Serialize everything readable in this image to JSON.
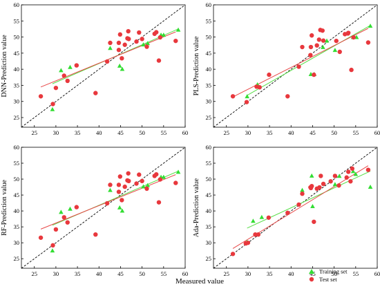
{
  "xlabel_common": "Measured value",
  "legend": {
    "training_label": "Training set",
    "test_label": "Test set",
    "placement": "bottom-right of Ada panel"
  },
  "colors": {
    "training": "#33dd33",
    "test": "#e8383d",
    "fit_training": "#55dd44",
    "fit_test": "#e84848",
    "diagonal": "#000000"
  },
  "chart_data": [
    {
      "type": "scatter",
      "ylabel": "DNN-Prediction value",
      "xlim": [
        22,
        60
      ],
      "ylim": [
        22,
        60
      ],
      "xticks": [
        25,
        30,
        35,
        40,
        45,
        50,
        55,
        60
      ],
      "yticks": [
        25,
        30,
        35,
        40,
        45,
        50,
        55,
        60
      ],
      "grid": false,
      "training": [
        [
          29.2,
          27.5
        ],
        [
          31.2,
          39.6
        ],
        [
          33.3,
          40.6
        ],
        [
          42.6,
          46.5
        ],
        [
          44.8,
          41.0
        ],
        [
          45.4,
          40.0
        ],
        [
          50.3,
          47.6
        ],
        [
          51.3,
          48.0
        ],
        [
          54.4,
          50.6
        ],
        [
          55.0,
          50.6
        ],
        [
          58.4,
          52.2
        ]
      ],
      "test": [
        [
          26.5,
          31.6
        ],
        [
          29.3,
          29.2
        ],
        [
          30.0,
          34.2
        ],
        [
          31.9,
          38.0
        ],
        [
          32.7,
          36.4
        ],
        [
          34.8,
          41.2
        ],
        [
          39.2,
          32.6
        ],
        [
          41.9,
          42.4
        ],
        [
          42.6,
          48.2
        ],
        [
          44.6,
          46.0
        ],
        [
          44.6,
          48.2
        ],
        [
          44.9,
          50.8
        ],
        [
          45.3,
          43.4
        ],
        [
          46.0,
          47.6
        ],
        [
          46.6,
          49.6
        ],
        [
          46.8,
          51.8
        ],
        [
          46.9,
          49.4
        ],
        [
          48.7,
          48.6
        ],
        [
          49.3,
          51.4
        ],
        [
          50.0,
          49.4
        ],
        [
          51.1,
          47.0
        ],
        [
          52.9,
          51.0
        ],
        [
          53.3,
          51.5
        ],
        [
          53.9,
          42.7
        ],
        [
          54.2,
          49.9
        ],
        [
          57.8,
          48.8
        ]
      ],
      "fit_training": [
        [
          29.2,
          35.5
        ],
        [
          58.4,
          52.5
        ]
      ],
      "fit_test": [
        [
          26.5,
          34.5
        ],
        [
          57.8,
          51.6
        ]
      ]
    },
    {
      "type": "scatter",
      "ylabel": "PLS-Prediction value",
      "xlim": [
        22,
        60
      ],
      "ylim": [
        22,
        60
      ],
      "xticks": [
        25,
        30,
        35,
        40,
        45,
        50,
        55,
        60
      ],
      "yticks": [
        25,
        30,
        35,
        40,
        45,
        50,
        55,
        60
      ],
      "grid": false,
      "training": [
        [
          29.8,
          31.5
        ],
        [
          32.2,
          35.2
        ],
        [
          44.6,
          38.4
        ],
        [
          45.4,
          38.4
        ],
        [
          47.4,
          46.8
        ],
        [
          48.3,
          48.8
        ],
        [
          50.2,
          45.9
        ],
        [
          54.4,
          49.9
        ],
        [
          55.2,
          49.9
        ],
        [
          58.4,
          53.4
        ]
      ],
      "test": [
        [
          26.5,
          31.6
        ],
        [
          29.7,
          29.8
        ],
        [
          32.0,
          34.6
        ],
        [
          32.7,
          34.4
        ],
        [
          34.9,
          38.3
        ],
        [
          39.2,
          31.6
        ],
        [
          41.8,
          40.8
        ],
        [
          42.6,
          46.9
        ],
        [
          44.5,
          44.4
        ],
        [
          44.6,
          46.9
        ],
        [
          44.8,
          50.5
        ],
        [
          45.3,
          38.3
        ],
        [
          46.0,
          47.4
        ],
        [
          46.5,
          49.2
        ],
        [
          46.8,
          52.2
        ],
        [
          47.3,
          52.0
        ],
        [
          47.5,
          48.9
        ],
        [
          50.5,
          48.8
        ],
        [
          51.3,
          45.4
        ],
        [
          52.5,
          50.9
        ],
        [
          53.2,
          51.1
        ],
        [
          53.3,
          51.3
        ],
        [
          54.0,
          39.8
        ],
        [
          54.5,
          49.9
        ],
        [
          57.9,
          48.3
        ]
      ],
      "fit_training": [
        [
          29.8,
          31.9
        ],
        [
          58.4,
          53.6
        ]
      ],
      "fit_test": [
        [
          26.5,
          31.4
        ],
        [
          57.9,
          52.7
        ]
      ]
    },
    {
      "type": "scatter",
      "ylabel": "RF-Prediction value",
      "xlim": [
        22,
        60
      ],
      "ylim": [
        22,
        60
      ],
      "xticks": [
        25,
        30,
        35,
        40,
        45,
        50,
        55,
        60
      ],
      "yticks": [
        25,
        30,
        35,
        40,
        45,
        50,
        55,
        60
      ],
      "grid": false,
      "training": [
        [
          29.2,
          27.5
        ],
        [
          31.2,
          39.6
        ],
        [
          33.3,
          40.6
        ],
        [
          42.6,
          46.5
        ],
        [
          44.8,
          41.0
        ],
        [
          45.4,
          40.0
        ],
        [
          50.3,
          47.6
        ],
        [
          51.3,
          48.0
        ],
        [
          54.4,
          50.6
        ],
        [
          55.0,
          50.6
        ],
        [
          58.4,
          52.2
        ]
      ],
      "test": [
        [
          26.5,
          31.6
        ],
        [
          29.3,
          29.2
        ],
        [
          30.0,
          34.2
        ],
        [
          31.9,
          38.0
        ],
        [
          32.7,
          36.4
        ],
        [
          34.8,
          41.2
        ],
        [
          39.2,
          32.6
        ],
        [
          41.9,
          42.4
        ],
        [
          42.6,
          48.2
        ],
        [
          44.6,
          46.0
        ],
        [
          44.6,
          48.2
        ],
        [
          44.9,
          50.8
        ],
        [
          45.3,
          43.4
        ],
        [
          46.0,
          47.6
        ],
        [
          46.6,
          49.6
        ],
        [
          46.8,
          51.8
        ],
        [
          46.9,
          49.4
        ],
        [
          48.7,
          48.6
        ],
        [
          49.3,
          51.4
        ],
        [
          50.0,
          49.4
        ],
        [
          51.1,
          47.0
        ],
        [
          52.9,
          51.0
        ],
        [
          53.3,
          51.5
        ],
        [
          53.9,
          42.7
        ],
        [
          54.2,
          49.9
        ],
        [
          57.8,
          48.8
        ]
      ],
      "fit_training": [
        [
          29.2,
          35.5
        ],
        [
          58.4,
          52.5
        ]
      ],
      "fit_test": [
        [
          26.5,
          34.3
        ],
        [
          57.8,
          51.4
        ]
      ]
    },
    {
      "type": "scatter",
      "ylabel": "Ada-Prediction value",
      "xlim": [
        22,
        60
      ],
      "ylim": [
        22,
        60
      ],
      "xticks": [
        25,
        30,
        35,
        40,
        45,
        50,
        55,
        60
      ],
      "yticks": [
        25,
        30,
        35,
        40,
        45,
        50,
        55,
        60
      ],
      "grid": false,
      "training": [
        [
          29.8,
          30.2
        ],
        [
          31.2,
          36.8
        ],
        [
          33.2,
          38.0
        ],
        [
          42.6,
          46.5
        ],
        [
          44.8,
          51.0
        ],
        [
          45.0,
          41.4
        ],
        [
          50.2,
          48.3
        ],
        [
          51.2,
          50.9
        ],
        [
          54.4,
          52.4
        ],
        [
          55.0,
          51.5
        ],
        [
          58.4,
          47.5
        ]
      ],
      "test": [
        [
          26.5,
          26.5
        ],
        [
          29.5,
          29.8
        ],
        [
          30.0,
          30.0
        ],
        [
          31.7,
          32.6
        ],
        [
          32.4,
          32.6
        ],
        [
          34.8,
          37.9
        ],
        [
          39.2,
          39.4
        ],
        [
          41.8,
          42.0
        ],
        [
          42.6,
          45.4
        ],
        [
          44.5,
          47.4
        ],
        [
          44.6,
          47.2
        ],
        [
          44.8,
          47.8
        ],
        [
          45.3,
          36.6
        ],
        [
          46.0,
          47.0
        ],
        [
          46.6,
          47.4
        ],
        [
          46.9,
          51.0
        ],
        [
          47.5,
          48.5
        ],
        [
          49.2,
          49.3
        ],
        [
          50.2,
          51.0
        ],
        [
          51.1,
          48.0
        ],
        [
          52.9,
          50.5
        ],
        [
          53.3,
          52.3
        ],
        [
          53.8,
          49.3
        ],
        [
          54.2,
          53.3
        ],
        [
          57.9,
          52.9
        ]
      ],
      "fit_training": [
        [
          29.8,
          34.6
        ],
        [
          58.4,
          52.5
        ]
      ],
      "fit_test": [
        [
          26.5,
          28.2
        ],
        [
          57.9,
          54.2
        ]
      ]
    }
  ]
}
